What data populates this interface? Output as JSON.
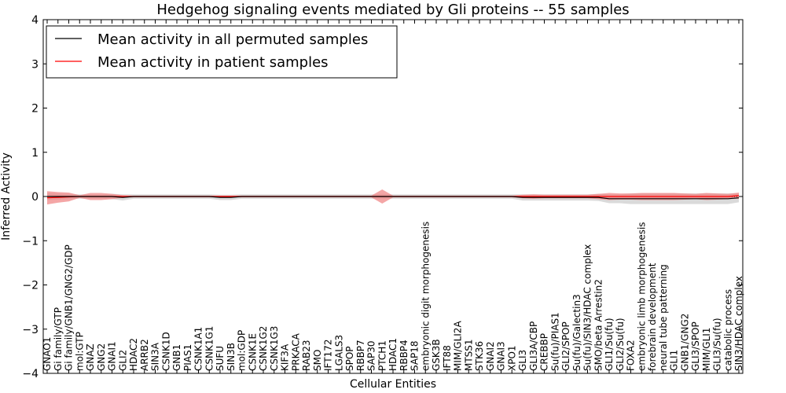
{
  "chart_data": {
    "type": "line",
    "title": "Hedgehog signaling events mediated by Gli proteins -- 55 samples",
    "xlabel": "Cellular Entities",
    "ylabel": "Inferred Activity",
    "ylim": [
      -4,
      4
    ],
    "yticks": [
      4,
      3,
      2,
      1,
      0,
      -1,
      -2,
      -3,
      -4
    ],
    "ytick_labels": [
      "4",
      "3",
      "2",
      "1",
      "0",
      "−1",
      "−2",
      "−3",
      "−4"
    ],
    "legend_position": "upper-left",
    "categories": [
      "GNAO1",
      "Gi family/GTP",
      "Gi family/GNB1/GNG2/GDP",
      "mol:GTP",
      "GNAZ",
      "GNG2",
      "GNAI1",
      "GLI2",
      "HDAC2",
      "ARRB2",
      "SIN3A",
      "CSNK1D",
      "GNB1",
      "PIAS1",
      "CSNK1A1",
      "CSNK1G1",
      "SUFU",
      "SIN3B",
      "mol:GDP",
      "CSNK1E",
      "CSNK1G2",
      "CSNK1G3",
      "KIF3A",
      "PRKACA",
      "RAB23",
      "SMO",
      "IFT172",
      "LGALS3",
      "SPOP",
      "RBBP7",
      "SAP30",
      "PTCH1",
      "HDAC1",
      "RBBP4",
      "SAP18",
      "embryonic digit morphogenesis",
      "GSK3B",
      "IFT88",
      "MIM/GLI2A",
      "MTSS1",
      "STK36",
      "GNAI2",
      "GNAI3",
      "XPO1",
      "GLI3",
      "GLI3A/CBP",
      "CREBBP",
      "Su(fu)/PIAS1",
      "GLI2/SPOP",
      "Su(fu)/Galectin3",
      "Su(fu)/SIN3/HDAC complex",
      "SMO/beta Arrestin2",
      "GLI1/Su(fu)",
      "GLI2/Su(fu)",
      "FOXA2",
      "embryonic limb morphogenesis",
      "forebrain development",
      "neural tube patterning",
      "GLI1",
      "GNB1/GNG2",
      "GLI3/SPOP",
      "MIM/GLI1",
      "GLI3/Su(fu)",
      "catabolic process",
      "SIN3/HDAC complex"
    ],
    "series": [
      {
        "name": "Mean activity in all permuted samples",
        "color": "#000000",
        "band_color": "#bbbbbb",
        "values": [
          0,
          0,
          0,
          0,
          0,
          0,
          0,
          -0.02,
          0,
          0,
          0,
          0,
          0,
          0,
          0,
          0,
          -0.02,
          -0.02,
          0,
          0,
          0,
          0,
          0,
          0,
          0,
          0,
          0,
          0,
          0,
          0,
          0,
          0,
          0,
          0,
          0,
          0,
          0,
          0,
          0,
          0,
          0,
          0,
          0,
          0,
          -0.02,
          -0.02,
          -0.02,
          -0.02,
          -0.02,
          -0.02,
          -0.02,
          -0.02,
          -0.05,
          -0.05,
          -0.05,
          -0.05,
          -0.05,
          -0.05,
          -0.05,
          -0.05,
          -0.05,
          -0.05,
          -0.05,
          -0.05,
          -0.03
        ],
        "spread": [
          0.08,
          0.07,
          0.06,
          0.05,
          0.05,
          0.05,
          0.06,
          0.07,
          0.05,
          0.05,
          0.05,
          0.05,
          0.05,
          0.05,
          0.05,
          0.05,
          0.06,
          0.06,
          0.05,
          0.05,
          0.05,
          0.05,
          0.05,
          0.05,
          0.05,
          0.05,
          0.05,
          0.05,
          0.05,
          0.05,
          0.05,
          0.06,
          0.05,
          0.05,
          0.05,
          0.05,
          0.05,
          0.05,
          0.05,
          0.05,
          0.05,
          0.05,
          0.05,
          0.05,
          0.07,
          0.07,
          0.07,
          0.07,
          0.07,
          0.07,
          0.07,
          0.08,
          0.1,
          0.1,
          0.12,
          0.12,
          0.12,
          0.12,
          0.12,
          0.12,
          0.12,
          0.12,
          0.12,
          0.12,
          0.1
        ]
      },
      {
        "name": "Mean activity in patient samples",
        "color": "#ff0000",
        "band_color": "#f08080",
        "values": [
          -0.03,
          -0.02,
          -0.01,
          0,
          0,
          0,
          0,
          0,
          0,
          0,
          0,
          0,
          0,
          0,
          0,
          0,
          0,
          0,
          0,
          0,
          0,
          0,
          0,
          0,
          0,
          0,
          0,
          0,
          0,
          0,
          0,
          0,
          0,
          0,
          0,
          0,
          0,
          0,
          0,
          0,
          0,
          0,
          0,
          0,
          0,
          0,
          0,
          0,
          0,
          0,
          0,
          0,
          0,
          0,
          0,
          0,
          0,
          0,
          0,
          0,
          0,
          0,
          0,
          0,
          0.02
        ],
        "spread": [
          0.15,
          0.12,
          0.1,
          0.03,
          0.08,
          0.08,
          0.06,
          0.03,
          0.02,
          0.02,
          0.02,
          0.02,
          0.02,
          0.02,
          0.02,
          0.02,
          0.02,
          0.02,
          0.02,
          0.02,
          0.02,
          0.02,
          0.02,
          0.02,
          0.02,
          0.02,
          0.02,
          0.02,
          0.02,
          0.02,
          0.02,
          0.16,
          0.02,
          0.02,
          0.02,
          0.02,
          0.02,
          0.02,
          0.02,
          0.02,
          0.02,
          0.02,
          0.02,
          0.02,
          0.04,
          0.05,
          0.04,
          0.04,
          0.04,
          0.04,
          0.04,
          0.06,
          0.08,
          0.07,
          0.07,
          0.08,
          0.08,
          0.08,
          0.08,
          0.07,
          0.06,
          0.08,
          0.07,
          0.06,
          0.07
        ]
      }
    ]
  }
}
